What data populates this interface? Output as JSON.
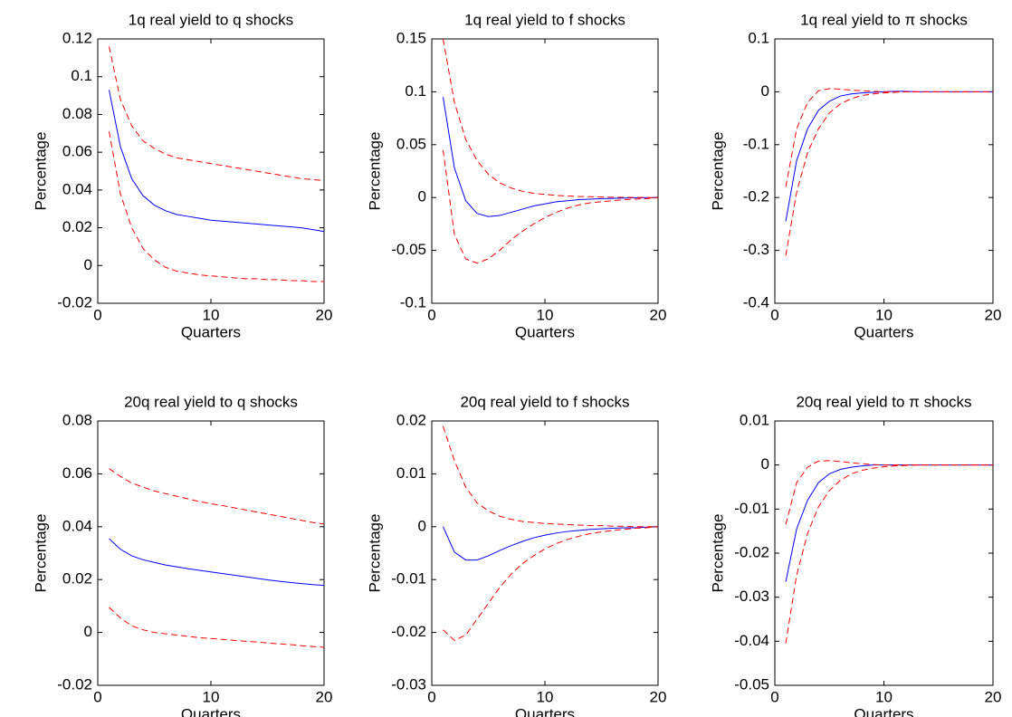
{
  "chart_data": [
    {
      "type": "line",
      "title": "1q real yield to q shocks",
      "x_label": "Quarters",
      "y_label": "Percentage",
      "x": [
        1,
        2,
        3,
        4,
        5,
        6,
        7,
        8,
        9,
        10,
        11,
        12,
        13,
        14,
        15,
        16,
        17,
        18,
        19,
        20
      ],
      "xlim": [
        0,
        20
      ],
      "xticks": [
        0,
        10,
        20
      ],
      "ylim": [
        -0.02,
        0.12
      ],
      "yticks": [
        -0.02,
        0,
        0.02,
        0.04,
        0.06,
        0.08,
        0.1,
        0.12
      ],
      "series": [
        {
          "color": "#0000ff",
          "line_style": "solid",
          "values": [
            0.093,
            0.063,
            0.046,
            0.037,
            0.032,
            0.029,
            0.027,
            0.026,
            0.025,
            0.024,
            0.0235,
            0.023,
            0.0225,
            0.022,
            0.0215,
            0.021,
            0.0205,
            0.02,
            0.019,
            0.018
          ]
        },
        {
          "color": "#ff0000",
          "line_style": "dashed",
          "values": [
            0.116,
            0.088,
            0.074,
            0.066,
            0.062,
            0.059,
            0.057,
            0.056,
            0.055,
            0.054,
            0.053,
            0.052,
            0.051,
            0.05,
            0.049,
            0.048,
            0.047,
            0.046,
            0.0455,
            0.045
          ]
        },
        {
          "color": "#ff0000",
          "line_style": "dashed",
          "values": [
            0.071,
            0.038,
            0.02,
            0.009,
            0.003,
            -0.001,
            -0.003,
            -0.004,
            -0.005,
            -0.0055,
            -0.006,
            -0.0065,
            -0.007,
            -0.007,
            -0.0075,
            -0.0075,
            -0.008,
            -0.008,
            -0.0085,
            -0.0085
          ]
        }
      ]
    },
    {
      "type": "line",
      "title": "1q real yield to f shocks",
      "x_label": "Quarters",
      "y_label": "Percentage",
      "x": [
        1,
        2,
        3,
        4,
        5,
        6,
        7,
        8,
        9,
        10,
        11,
        12,
        13,
        14,
        15,
        16,
        17,
        18,
        19,
        20
      ],
      "xlim": [
        0,
        20
      ],
      "xticks": [
        0,
        10,
        20
      ],
      "ylim": [
        -0.1,
        0.15
      ],
      "yticks": [
        -0.1,
        -0.05,
        0,
        0.05,
        0.1,
        0.15
      ],
      "series": [
        {
          "color": "#0000ff",
          "line_style": "solid",
          "values": [
            0.095,
            0.028,
            -0.003,
            -0.015,
            -0.018,
            -0.017,
            -0.014,
            -0.011,
            -0.008,
            -0.006,
            -0.004,
            -0.003,
            -0.002,
            -0.0015,
            -0.001,
            -0.0008,
            -0.0005,
            -0.0003,
            -0.0002,
            0
          ]
        },
        {
          "color": "#ff0000",
          "line_style": "dashed",
          "values": [
            0.15,
            0.09,
            0.055,
            0.035,
            0.022,
            0.014,
            0.009,
            0.006,
            0.004,
            0.003,
            0.002,
            0.0015,
            0.001,
            0.0008,
            0.0005,
            0.0003,
            0.0002,
            0.0001,
            0,
            0
          ]
        },
        {
          "color": "#ff0000",
          "line_style": "dashed",
          "values": [
            0.045,
            -0.035,
            -0.058,
            -0.062,
            -0.058,
            -0.05,
            -0.04,
            -0.032,
            -0.025,
            -0.019,
            -0.014,
            -0.01,
            -0.007,
            -0.005,
            -0.004,
            -0.003,
            -0.002,
            -0.0015,
            -0.001,
            0
          ]
        }
      ]
    },
    {
      "type": "line",
      "title": "1q real yield to π shocks",
      "x_label": "Quarters",
      "y_label": "Percentage",
      "x": [
        1,
        2,
        3,
        4,
        5,
        6,
        7,
        8,
        9,
        10,
        11,
        12,
        13,
        14,
        15,
        16,
        17,
        18,
        19,
        20
      ],
      "xlim": [
        0,
        20
      ],
      "xticks": [
        0,
        10,
        20
      ],
      "ylim": [
        -0.4,
        0.1
      ],
      "yticks": [
        -0.4,
        -0.3,
        -0.2,
        -0.1,
        0,
        0.1
      ],
      "series": [
        {
          "color": "#0000ff",
          "line_style": "solid",
          "values": [
            -0.245,
            -0.13,
            -0.07,
            -0.035,
            -0.018,
            -0.008,
            -0.004,
            -0.002,
            -0.001,
            0,
            0.001,
            0.001,
            0,
            0,
            0,
            0,
            0,
            0,
            0,
            0
          ]
        },
        {
          "color": "#ff0000",
          "line_style": "dashed",
          "values": [
            -0.18,
            -0.07,
            -0.02,
            0.002,
            0.006,
            0.005,
            0.003,
            0.002,
            0.001,
            0,
            0,
            0,
            0,
            0,
            0,
            0,
            0,
            0,
            0,
            0
          ]
        },
        {
          "color": "#ff0000",
          "line_style": "dashed",
          "values": [
            -0.31,
            -0.19,
            -0.115,
            -0.07,
            -0.04,
            -0.023,
            -0.013,
            -0.007,
            -0.004,
            -0.002,
            -0.001,
            0,
            0,
            0,
            0,
            0,
            0,
            0,
            0,
            0
          ]
        }
      ]
    },
    {
      "type": "line",
      "title": "20q real yield to q shocks",
      "x_label": "Quarters",
      "y_label": "Percentage",
      "x": [
        1,
        2,
        3,
        4,
        5,
        6,
        7,
        8,
        9,
        10,
        11,
        12,
        13,
        14,
        15,
        16,
        17,
        18,
        19,
        20
      ],
      "xlim": [
        0,
        20
      ],
      "xticks": [
        0,
        10,
        20
      ],
      "ylim": [
        -0.02,
        0.08
      ],
      "yticks": [
        -0.02,
        0,
        0.02,
        0.04,
        0.06,
        0.08
      ],
      "series": [
        {
          "color": "#0000ff",
          "line_style": "solid",
          "values": [
            0.0355,
            0.0315,
            0.029,
            0.0275,
            0.0265,
            0.0255,
            0.0248,
            0.0241,
            0.0235,
            0.0229,
            0.0223,
            0.0217,
            0.0211,
            0.0205,
            0.0199,
            0.0194,
            0.0189,
            0.0185,
            0.0181,
            0.0178
          ]
        },
        {
          "color": "#ff0000",
          "line_style": "dashed",
          "values": [
            0.062,
            0.059,
            0.0565,
            0.055,
            0.0535,
            0.0525,
            0.0515,
            0.0505,
            0.0495,
            0.0487,
            0.048,
            0.0472,
            0.0464,
            0.0456,
            0.0448,
            0.044,
            0.0432,
            0.0424,
            0.0416,
            0.041
          ]
        },
        {
          "color": "#ff0000",
          "line_style": "dashed",
          "values": [
            0.0095,
            0.0055,
            0.0025,
            0.001,
            0,
            -0.0005,
            -0.001,
            -0.0015,
            -0.002,
            -0.0023,
            -0.0026,
            -0.003,
            -0.0033,
            -0.0036,
            -0.004,
            -0.0043,
            -0.0046,
            -0.005,
            -0.0053,
            -0.0056
          ]
        }
      ]
    },
    {
      "type": "line",
      "title": "20q real yield to f shocks",
      "x_label": "Quarters",
      "y_label": "Percentage",
      "x": [
        1,
        2,
        3,
        4,
        5,
        6,
        7,
        8,
        9,
        10,
        11,
        12,
        13,
        14,
        15,
        16,
        17,
        18,
        19,
        20
      ],
      "xlim": [
        0,
        20
      ],
      "xticks": [
        0,
        10,
        20
      ],
      "ylim": [
        -0.03,
        0.02
      ],
      "yticks": [
        -0.03,
        -0.02,
        -0.01,
        0,
        0.01,
        0.02
      ],
      "series": [
        {
          "color": "#0000ff",
          "line_style": "solid",
          "values": [
            0,
            -0.0048,
            -0.0063,
            -0.0063,
            -0.0055,
            -0.0045,
            -0.0036,
            -0.0028,
            -0.0021,
            -0.0016,
            -0.0012,
            -0.0009,
            -0.0007,
            -0.0005,
            -0.0004,
            -0.0003,
            -0.0002,
            -0.0002,
            -0.0001,
            0
          ]
        },
        {
          "color": "#ff0000",
          "line_style": "dashed",
          "values": [
            0.019,
            0.0125,
            0.0075,
            0.0045,
            0.003,
            0.002,
            0.0014,
            0.001,
            0.0008,
            0.0006,
            0.0005,
            0.0004,
            0.0003,
            0.0002,
            0.0002,
            0.0001,
            0.0001,
            0,
            0,
            0
          ]
        },
        {
          "color": "#ff0000",
          "line_style": "dashed",
          "values": [
            -0.0195,
            -0.0215,
            -0.0205,
            -0.0175,
            -0.0145,
            -0.0115,
            -0.009,
            -0.007,
            -0.0055,
            -0.0042,
            -0.0032,
            -0.0024,
            -0.0018,
            -0.0013,
            -0.001,
            -0.0007,
            -0.0005,
            -0.0003,
            -0.0002,
            0
          ]
        }
      ]
    },
    {
      "type": "line",
      "title": "20q real yield to π shocks",
      "x_label": "Quarters",
      "y_label": "Percentage",
      "x": [
        1,
        2,
        3,
        4,
        5,
        6,
        7,
        8,
        9,
        10,
        11,
        12,
        13,
        14,
        15,
        16,
        17,
        18,
        19,
        20
      ],
      "xlim": [
        0,
        20
      ],
      "xticks": [
        0,
        10,
        20
      ],
      "ylim": [
        -0.05,
        0.01
      ],
      "yticks": [
        -0.05,
        -0.04,
        -0.03,
        -0.02,
        -0.01,
        0,
        0.01
      ],
      "series": [
        {
          "color": "#0000ff",
          "line_style": "solid",
          "values": [
            -0.0265,
            -0.0145,
            -0.008,
            -0.004,
            -0.002,
            -0.001,
            -0.0005,
            -0.0002,
            0,
            0,
            0,
            0,
            0,
            0,
            0,
            0,
            0,
            0,
            0,
            0
          ]
        },
        {
          "color": "#ff0000",
          "line_style": "dashed",
          "values": [
            -0.0135,
            -0.004,
            -0.0005,
            0.0009,
            0.001,
            0.0008,
            0.0005,
            0.0003,
            0.0001,
            0,
            0,
            0,
            0,
            0,
            0,
            0,
            0,
            0,
            0,
            0
          ]
        },
        {
          "color": "#ff0000",
          "line_style": "dashed",
          "values": [
            -0.0405,
            -0.025,
            -0.0155,
            -0.0095,
            -0.0058,
            -0.0035,
            -0.002,
            -0.0012,
            -0.0007,
            -0.0004,
            -0.0002,
            -0.0001,
            0,
            0,
            0,
            0,
            0,
            0,
            0,
            0
          ]
        }
      ]
    }
  ]
}
